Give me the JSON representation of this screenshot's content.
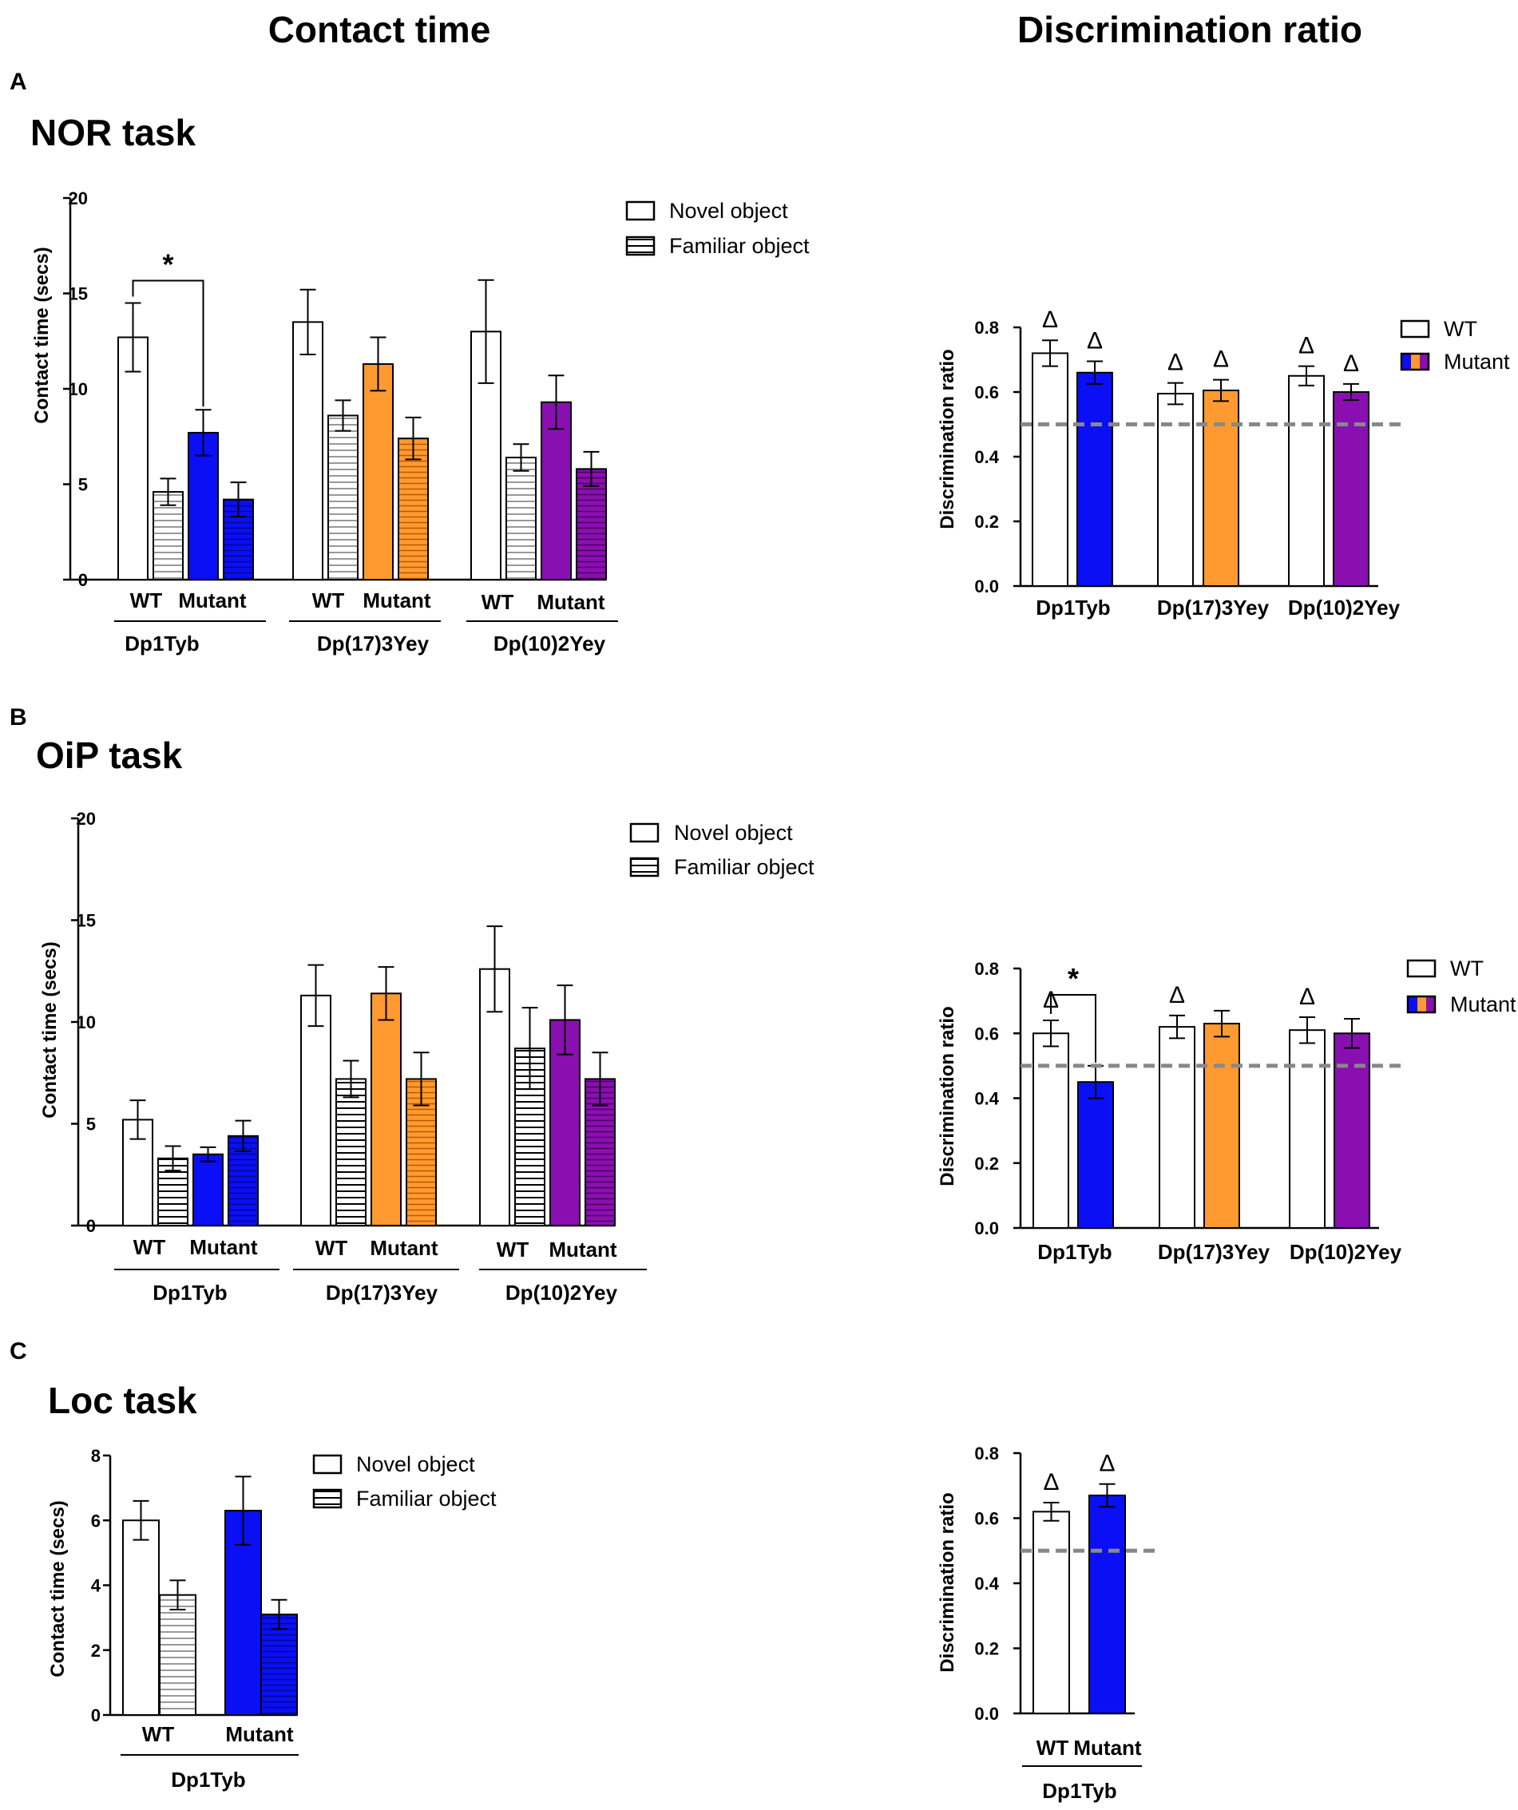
{
  "column_titles": {
    "contact": "Contact time",
    "ratio": "Discrimination ratio"
  },
  "colors": {
    "wt": "#ffffff",
    "dp1tyb": "#0a0ff5",
    "dp17": "#ff9a30",
    "dp10": "#8a0fb0",
    "dashed": "#888888"
  },
  "panels": [
    {
      "letter": "A",
      "task": "NOR task"
    },
    {
      "letter": "B",
      "task": "OiP task"
    },
    {
      "letter": "C",
      "task": "Loc task"
    }
  ],
  "legends": {
    "contact": [
      "Novel object",
      "Familiar object"
    ],
    "ratio": [
      "WT",
      "Mutant"
    ]
  },
  "chart_data": [
    {
      "id": "nor_contact",
      "type": "bar",
      "title": "NOR task",
      "ylabel": "Contact time (secs)",
      "ylim": [
        0,
        20
      ],
      "yticks": [
        0,
        5,
        10,
        15,
        20
      ],
      "groups": [
        {
          "name": "Dp1Tyb",
          "color": "dp1tyb",
          "sub": [
            "WT",
            "Mutant"
          ],
          "bars": [
            {
              "genotype": "WT",
              "object": "Novel",
              "value": 12.7,
              "err": 1.8
            },
            {
              "genotype": "WT",
              "object": "Familiar",
              "value": 4.6,
              "err": 0.7
            },
            {
              "genotype": "Mutant",
              "object": "Novel",
              "value": 7.7,
              "err": 1.2
            },
            {
              "genotype": "Mutant",
              "object": "Familiar",
              "value": 4.2,
              "err": 0.9
            }
          ]
        },
        {
          "name": "Dp(17)3Yey",
          "color": "dp17",
          "sub": [
            "WT",
            "Mutant"
          ],
          "bars": [
            {
              "genotype": "WT",
              "object": "Novel",
              "value": 13.5,
              "err": 1.7
            },
            {
              "genotype": "WT",
              "object": "Familiar",
              "value": 8.6,
              "err": 0.8
            },
            {
              "genotype": "Mutant",
              "object": "Novel",
              "value": 11.3,
              "err": 1.4
            },
            {
              "genotype": "Mutant",
              "object": "Familiar",
              "value": 7.4,
              "err": 1.1
            }
          ]
        },
        {
          "name": "Dp(10)2Yey",
          "color": "dp10",
          "sub": [
            "WT",
            "Mutant"
          ],
          "bars": [
            {
              "genotype": "WT",
              "object": "Novel",
              "value": 13.0,
              "err": 2.7
            },
            {
              "genotype": "WT",
              "object": "Familiar",
              "value": 6.4,
              "err": 0.7
            },
            {
              "genotype": "Mutant",
              "object": "Novel",
              "value": 9.3,
              "err": 1.4
            },
            {
              "genotype": "Mutant",
              "object": "Familiar",
              "value": 5.8,
              "err": 0.9
            }
          ]
        }
      ],
      "significance": [
        {
          "group": 0,
          "from": 0,
          "to": 2,
          "label": "*"
        }
      ]
    },
    {
      "id": "nor_ratio",
      "type": "bar",
      "title": "NOR task",
      "ylabel": "Discrimination ratio",
      "ylim": [
        0,
        0.8
      ],
      "yticks": [
        0.0,
        0.2,
        0.4,
        0.6,
        0.8
      ],
      "reference_line": 0.5,
      "groups": [
        {
          "name": "Dp1Tyb",
          "color": "dp1tyb",
          "bars": [
            {
              "genotype": "WT",
              "value": 0.72,
              "err": 0.04,
              "delta": true
            },
            {
              "genotype": "Mutant",
              "value": 0.66,
              "err": 0.035,
              "delta": true
            }
          ]
        },
        {
          "name": "Dp(17)3Yey",
          "color": "dp17",
          "bars": [
            {
              "genotype": "WT",
              "value": 0.595,
              "err": 0.033,
              "delta": true
            },
            {
              "genotype": "Mutant",
              "value": 0.605,
              "err": 0.033,
              "delta": true
            }
          ]
        },
        {
          "name": "Dp(10)2Yey",
          "color": "dp10",
          "bars": [
            {
              "genotype": "WT",
              "value": 0.65,
              "err": 0.03,
              "delta": true
            },
            {
              "genotype": "Mutant",
              "value": 0.6,
              "err": 0.025,
              "delta": true
            }
          ]
        }
      ],
      "significance": []
    },
    {
      "id": "oip_contact",
      "type": "bar",
      "title": "OiP task",
      "ylabel": "Contact time (secs)",
      "ylim": [
        0,
        20
      ],
      "yticks": [
        0,
        5,
        10,
        15,
        20
      ],
      "groups": [
        {
          "name": "Dp1Tyb",
          "color": "dp1tyb",
          "sub": [
            "WT",
            "Mutant"
          ],
          "bars": [
            {
              "genotype": "WT",
              "object": "Novel",
              "value": 5.2,
              "err": 0.95
            },
            {
              "genotype": "WT",
              "object": "Familiar",
              "value": 3.3,
              "err": 0.6
            },
            {
              "genotype": "Mutant",
              "object": "Novel",
              "value": 3.5,
              "err": 0.35
            },
            {
              "genotype": "Mutant",
              "object": "Familiar",
              "value": 4.4,
              "err": 0.75
            }
          ]
        },
        {
          "name": "Dp(17)3Yey",
          "color": "dp17",
          "sub": [
            "WT",
            "Mutant"
          ],
          "bars": [
            {
              "genotype": "WT",
              "object": "Novel",
              "value": 11.3,
              "err": 1.5
            },
            {
              "genotype": "WT",
              "object": "Familiar",
              "value": 7.2,
              "err": 0.9
            },
            {
              "genotype": "Mutant",
              "object": "Novel",
              "value": 11.4,
              "err": 1.3
            },
            {
              "genotype": "Mutant",
              "object": "Familiar",
              "value": 7.2,
              "err": 1.3
            }
          ]
        },
        {
          "name": "Dp(10)2Yey",
          "color": "dp10",
          "sub": [
            "WT",
            "Mutant"
          ],
          "bars": [
            {
              "genotype": "WT",
              "object": "Novel",
              "value": 12.6,
              "err": 2.1
            },
            {
              "genotype": "WT",
              "object": "Familiar",
              "value": 8.7,
              "err": 2.0
            },
            {
              "genotype": "Mutant",
              "object": "Novel",
              "value": 10.1,
              "err": 1.7
            },
            {
              "genotype": "Mutant",
              "object": "Familiar",
              "value": 7.2,
              "err": 1.3
            }
          ]
        }
      ],
      "significance": []
    },
    {
      "id": "oip_ratio",
      "type": "bar",
      "title": "OiP task",
      "ylabel": "Discrimination ratio",
      "ylim": [
        0,
        0.8
      ],
      "yticks": [
        0.0,
        0.2,
        0.4,
        0.6,
        0.8
      ],
      "reference_line": 0.5,
      "groups": [
        {
          "name": "Dp1Tyb",
          "color": "dp1tyb",
          "bars": [
            {
              "genotype": "WT",
              "value": 0.6,
              "err": 0.04,
              "delta": true
            },
            {
              "genotype": "Mutant",
              "value": 0.45,
              "err": 0.05,
              "delta": false
            }
          ]
        },
        {
          "name": "Dp(17)3Yey",
          "color": "dp17",
          "bars": [
            {
              "genotype": "WT",
              "value": 0.62,
              "err": 0.035,
              "delta": true
            },
            {
              "genotype": "Mutant",
              "value": 0.63,
              "err": 0.04,
              "delta": false
            }
          ]
        },
        {
          "name": "Dp(10)2Yey",
          "color": "dp10",
          "bars": [
            {
              "genotype": "WT",
              "value": 0.61,
              "err": 0.04,
              "delta": true
            },
            {
              "genotype": "Mutant",
              "value": 0.6,
              "err": 0.045,
              "delta": false
            }
          ]
        }
      ],
      "significance": [
        {
          "group": 0,
          "from": 0,
          "to": 1,
          "label": "*"
        }
      ]
    },
    {
      "id": "loc_contact",
      "type": "bar",
      "title": "Loc task",
      "ylabel": "Contact time (secs)",
      "ylim": [
        0,
        8
      ],
      "yticks": [
        0,
        2,
        4,
        6,
        8
      ],
      "groups": [
        {
          "name": "Dp1Tyb",
          "color": "dp1tyb",
          "sub": [
            "WT",
            "Mutant"
          ],
          "bars": [
            {
              "genotype": "WT",
              "object": "Novel",
              "value": 6.0,
              "err": 0.6
            },
            {
              "genotype": "WT",
              "object": "Familiar",
              "value": 3.7,
              "err": 0.45
            },
            {
              "genotype": "Mutant",
              "object": "Novel",
              "value": 6.3,
              "err": 1.05
            },
            {
              "genotype": "Mutant",
              "object": "Familiar",
              "value": 3.1,
              "err": 0.45
            }
          ]
        }
      ],
      "significance": []
    },
    {
      "id": "loc_ratio",
      "type": "bar",
      "title": "Loc task",
      "ylabel": "Discrimination ratio",
      "ylim": [
        0,
        0.8
      ],
      "yticks": [
        0.0,
        0.2,
        0.4,
        0.6,
        0.8
      ],
      "reference_line": 0.5,
      "groups": [
        {
          "name": "Dp1Tyb",
          "color": "dp1tyb",
          "sub": [
            "WT",
            "Mutant"
          ],
          "bars": [
            {
              "genotype": "WT",
              "value": 0.62,
              "err": 0.028,
              "delta": true
            },
            {
              "genotype": "Mutant",
              "value": 0.67,
              "err": 0.035,
              "delta": true
            }
          ]
        }
      ],
      "significance": []
    }
  ]
}
